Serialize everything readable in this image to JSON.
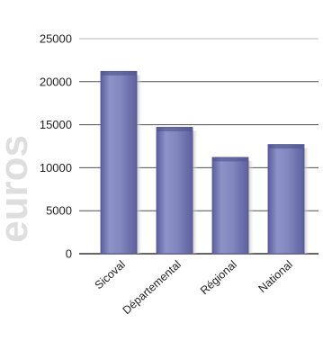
{
  "chart_data": {
    "type": "bar",
    "categories": [
      "Sicoval",
      "Départemental",
      "Régional",
      "National"
    ],
    "values": [
      21200,
      14700,
      11200,
      12700
    ],
    "ylabel": "euros",
    "ylim": [
      0,
      25000
    ],
    "yticks": [
      0,
      5000,
      10000,
      15000,
      20000,
      25000
    ],
    "grid": true,
    "bar_color": "#7b80b8",
    "bar_edge_color": "#4d5190",
    "grid_color": "#333333"
  }
}
